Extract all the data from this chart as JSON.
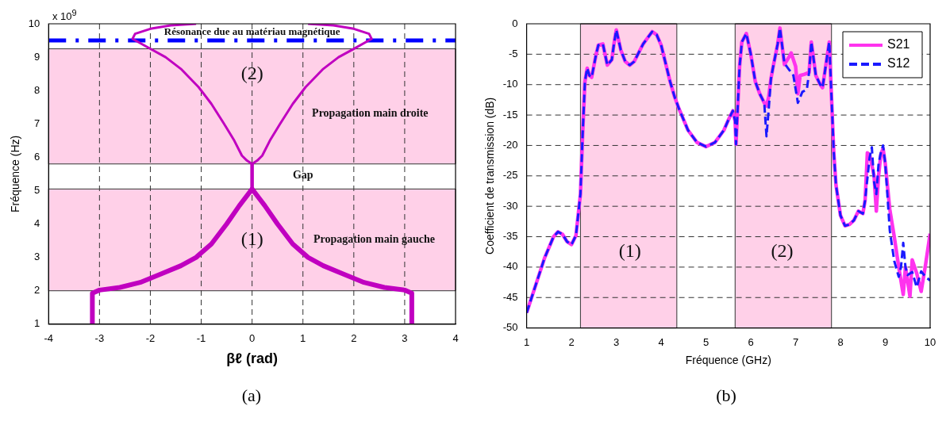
{
  "chart_data": [
    {
      "type": "line",
      "xlabel": "βℓ (rad)",
      "ylabel": "Fréquence (Hz)",
      "xlim": [
        -4,
        4
      ],
      "xticks": [
        -4,
        -3,
        -2,
        -1,
        0,
        1,
        2,
        3,
        4
      ],
      "ylim": [
        1,
        10
      ],
      "yticks": [
        1,
        2,
        3,
        4,
        5,
        6,
        7,
        8,
        9,
        10
      ],
      "grid": "x",
      "marker": "none",
      "series": [
        {
          "color": "#c000c0",
          "x": [
            -3.14,
            -3.14,
            -3.0,
            -2.6,
            -2.2,
            -1.8,
            -1.4,
            -1.1,
            -0.8,
            -0.5,
            -0.25,
            0,
            0.25,
            0.5,
            0.8,
            1.1,
            1.4,
            1.8,
            2.2,
            2.6,
            3.0,
            3.14,
            3.14
          ],
          "values": [
            1,
            1.93,
            2.02,
            2.1,
            2.25,
            2.5,
            2.75,
            3.0,
            3.4,
            4.0,
            4.55,
            5.05,
            4.55,
            4.0,
            3.4,
            3.0,
            2.75,
            2.5,
            2.25,
            2.1,
            2.02,
            1.93,
            1
          ]
        },
        {
          "color": "#c000c0",
          "x": [
            0,
            0
          ],
          "values": [
            5.05,
            5.8
          ]
        },
        {
          "color": "#c000c0",
          "x": [
            -1.1,
            -1.6,
            -2.0,
            -2.3,
            -2.35,
            -2.0,
            -1.7,
            -1.4,
            -1.05,
            -0.8,
            -0.55,
            -0.35,
            -0.2,
            -0.1,
            0,
            0.1,
            0.2,
            0.35,
            0.55,
            0.8,
            1.05,
            1.4,
            1.7,
            2.0,
            2.35,
            2.3,
            2.0,
            1.6,
            1.1
          ],
          "values": [
            10,
            9.95,
            9.85,
            9.7,
            9.55,
            9.25,
            9.0,
            8.65,
            8.1,
            7.6,
            7.0,
            6.5,
            6.05,
            5.9,
            5.8,
            5.9,
            6.05,
            6.5,
            7.0,
            7.6,
            8.1,
            8.65,
            9.0,
            9.25,
            9.55,
            9.7,
            9.85,
            9.95,
            10
          ]
        }
      ],
      "bands": [
        {
          "axis": "y",
          "from": 2,
          "to": 5.05,
          "color": "#ffd0e8"
        },
        {
          "axis": "y",
          "from": 5.8,
          "to": 9.25,
          "color": "#ffd0e8"
        }
      ],
      "ref_lines": [
        {
          "axis": "y",
          "value": 9.5,
          "label": "Résonance due au matériau magnétique",
          "color": "#0000ff",
          "line_style": "dashed"
        }
      ],
      "annotations": [
        "x 10$^{9}$",
        "(2)",
        "Propagation main droite",
        "Gap",
        "(1)",
        "Propagation main gauche",
        "(a)"
      ]
    },
    {
      "type": "line",
      "xlabel": "Fréquence (GHz)",
      "ylabel": "Coefficient de transmission (dB)",
      "xlim": [
        1,
        10
      ],
      "xticks": [
        1,
        2,
        3,
        4,
        5,
        6,
        7,
        8,
        9,
        10
      ],
      "ylim": [
        -50,
        0
      ],
      "yticks": [
        -50,
        -45,
        -40,
        -35,
        -30,
        -25,
        -20,
        -15,
        -10,
        -5,
        0
      ],
      "grid": "y",
      "legend": "top right",
      "marker": "none",
      "series": [
        {
          "name": "S21",
          "color": "#ff33ee",
          "line_style": "solid",
          "x": [
            1.0,
            1.2,
            1.4,
            1.6,
            1.7,
            1.8,
            1.9,
            2.0,
            2.1,
            2.2,
            2.25,
            2.3,
            2.35,
            2.4,
            2.45,
            2.55,
            2.6,
            2.7,
            2.8,
            2.9,
            2.95,
            3.0,
            3.1,
            3.2,
            3.3,
            3.4,
            3.6,
            3.8,
            3.9,
            4.0,
            4.1,
            4.2,
            4.3,
            4.4,
            4.6,
            4.8,
            5.0,
            5.2,
            5.4,
            5.5,
            5.6,
            5.65,
            5.67,
            5.7,
            5.75,
            5.8,
            5.9,
            6.0,
            6.1,
            6.2,
            6.3,
            6.35,
            6.4,
            6.45,
            6.5,
            6.6,
            6.65,
            6.75,
            6.85,
            6.9,
            7.0,
            7.05,
            7.1,
            7.2,
            7.3,
            7.35,
            7.45,
            7.55,
            7.6,
            7.7,
            7.75,
            7.8,
            7.85,
            7.9,
            8.0,
            8.1,
            8.2,
            8.3,
            8.4,
            8.5,
            8.55,
            8.6,
            8.65,
            8.75,
            8.8,
            8.85,
            8.9,
            8.95,
            9.0,
            9.1,
            9.2,
            9.3,
            9.4,
            9.45,
            9.55,
            9.6,
            9.7,
            9.8,
            9.9,
            10.0
          ],
          "values": [
            -47.5,
            -43,
            -38.5,
            -35,
            -34.2,
            -34.6,
            -35.8,
            -36.3,
            -34.8,
            -28,
            -18,
            -9.5,
            -7.3,
            -8.5,
            -8.8,
            -5,
            -3.5,
            -3.3,
            -6.8,
            -5.9,
            -3.2,
            -1.0,
            -4.3,
            -6.2,
            -6.8,
            -6.2,
            -3.3,
            -1.3,
            -1.8,
            -3.5,
            -6.5,
            -9.5,
            -12,
            -14,
            -17.5,
            -19.5,
            -20.2,
            -19.5,
            -17.5,
            -15.8,
            -14.3,
            -16,
            -19.8,
            -15,
            -7,
            -3,
            -1.6,
            -5,
            -9.5,
            -11.5,
            -13,
            -13.5,
            -12,
            -9,
            -7,
            -3.3,
            -0.7,
            -6.7,
            -5.5,
            -4.8,
            -7,
            -11.5,
            -8.5,
            -8.3,
            -8,
            -3,
            -8.5,
            -10,
            -10.5,
            -5.5,
            -3,
            -12,
            -21,
            -26.5,
            -31.5,
            -33.2,
            -33,
            -32.3,
            -30.8,
            -31.2,
            -29,
            -21.2,
            -21.5,
            -25,
            -30.8,
            -25,
            -21.5,
            -20.5,
            -23,
            -30.5,
            -35,
            -40,
            -44.5,
            -40,
            -44.8,
            -38.8,
            -41,
            -44,
            -39.5,
            -34.5
          ]
        },
        {
          "name": "S12",
          "color": "#1a1aff",
          "line_style": "dashed",
          "x": [
            1.0,
            1.2,
            1.4,
            1.6,
            1.7,
            1.8,
            1.9,
            2.0,
            2.1,
            2.2,
            2.25,
            2.3,
            2.35,
            2.4,
            2.45,
            2.55,
            2.6,
            2.7,
            2.8,
            2.9,
            2.95,
            3.0,
            3.1,
            3.2,
            3.3,
            3.4,
            3.6,
            3.8,
            3.9,
            4.0,
            4.1,
            4.2,
            4.3,
            4.4,
            4.6,
            4.8,
            5.0,
            5.2,
            5.4,
            5.5,
            5.6,
            5.65,
            5.67,
            5.7,
            5.75,
            5.8,
            5.9,
            6.0,
            6.1,
            6.2,
            6.3,
            6.35,
            6.4,
            6.45,
            6.5,
            6.6,
            6.65,
            6.75,
            6.85,
            6.95,
            7.05,
            7.15,
            7.25,
            7.3,
            7.35,
            7.45,
            7.55,
            7.6,
            7.7,
            7.75,
            7.8,
            7.85,
            7.9,
            8.0,
            8.1,
            8.2,
            8.3,
            8.4,
            8.5,
            8.55,
            8.65,
            8.7,
            8.75,
            8.8,
            8.85,
            8.9,
            8.95,
            9.0,
            9.1,
            9.2,
            9.3,
            9.35,
            9.4,
            9.45,
            9.5,
            9.6,
            9.7,
            9.8,
            9.9,
            10.0
          ],
          "values": [
            -47.5,
            -43,
            -38.5,
            -35,
            -34.2,
            -34.6,
            -35.8,
            -36.3,
            -34.8,
            -28,
            -18,
            -9.5,
            -7.3,
            -8.5,
            -8.8,
            -5,
            -3.5,
            -3.3,
            -6.8,
            -5.9,
            -3.2,
            -1.0,
            -4.3,
            -6.2,
            -6.8,
            -6.2,
            -3.3,
            -1.3,
            -1.8,
            -3.5,
            -6.5,
            -9.5,
            -12,
            -14,
            -17.5,
            -19.5,
            -20.2,
            -19.5,
            -17.5,
            -15.8,
            -14.3,
            -16,
            -19.8,
            -15,
            -7,
            -3,
            -1.6,
            -5,
            -9.5,
            -11.5,
            -13,
            -18.5,
            -14,
            -9,
            -7,
            -3.3,
            -0.7,
            -6.5,
            -7.5,
            -8.5,
            -13,
            -11.2,
            -10.8,
            -8,
            -3,
            -8.5,
            -10,
            -10.5,
            -5.5,
            -3,
            -12,
            -21,
            -26.5,
            -31.5,
            -33.2,
            -33,
            -32.3,
            -30.8,
            -31.2,
            -29,
            -22,
            -20.3,
            -26,
            -28,
            -23,
            -21.2,
            -20,
            -23,
            -34,
            -39,
            -41.6,
            -40,
            -36,
            -40,
            -41.3,
            -40.8,
            -43.3,
            -40.7,
            -41.6,
            -42.2
          ]
        }
      ],
      "bands": [
        {
          "axis": "x",
          "from": 2.2,
          "to": 4.35,
          "color": "#ffd0e8"
        },
        {
          "axis": "x",
          "from": 5.65,
          "to": 7.8,
          "color": "#ffd0e8"
        }
      ],
      "annotations": [
        "(1)",
        "(2)",
        "(b)"
      ]
    }
  ]
}
